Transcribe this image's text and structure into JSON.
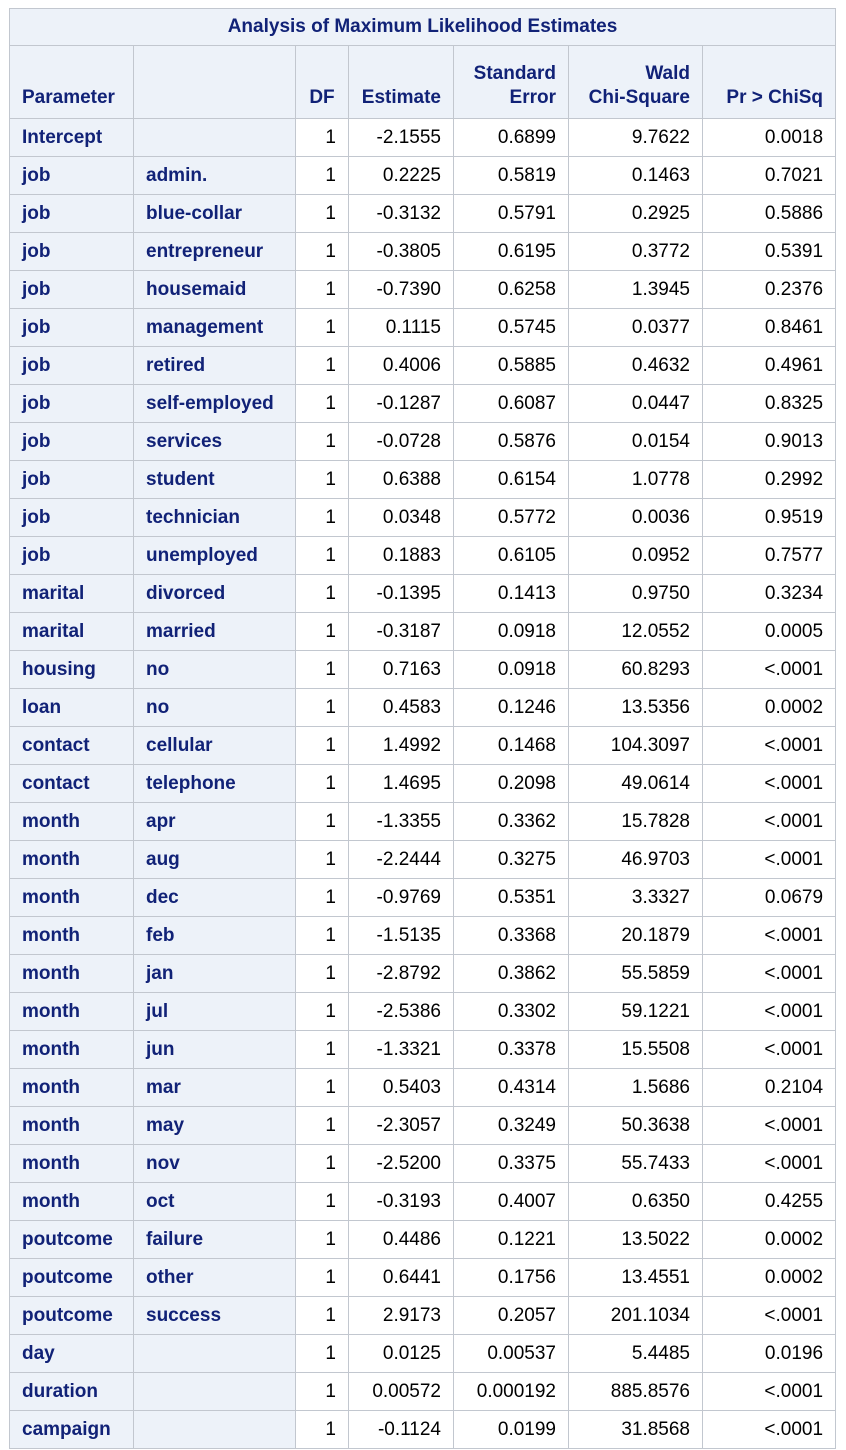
{
  "table": {
    "title": "Analysis of Maximum Likelihood Estimates",
    "headers": {
      "parameter": "Parameter",
      "level": "",
      "df": "DF",
      "estimate": "Estimate",
      "std_error_l1": "Standard",
      "std_error_l2": "Error",
      "wald_l1": "Wald",
      "wald_l2": "Chi-Square",
      "pr": "Pr > ChiSq"
    },
    "rows": [
      {
        "param": "Intercept",
        "level": "",
        "df": "1",
        "est": "-2.1555",
        "se": "0.6899",
        "wald": "9.7622",
        "pr": "0.0018"
      },
      {
        "param": "job",
        "level": "admin.",
        "df": "1",
        "est": "0.2225",
        "se": "0.5819",
        "wald": "0.1463",
        "pr": "0.7021"
      },
      {
        "param": "job",
        "level": "blue-collar",
        "df": "1",
        "est": "-0.3132",
        "se": "0.5791",
        "wald": "0.2925",
        "pr": "0.5886"
      },
      {
        "param": "job",
        "level": "entrepreneur",
        "df": "1",
        "est": "-0.3805",
        "se": "0.6195",
        "wald": "0.3772",
        "pr": "0.5391"
      },
      {
        "param": "job",
        "level": "housemaid",
        "df": "1",
        "est": "-0.7390",
        "se": "0.6258",
        "wald": "1.3945",
        "pr": "0.2376"
      },
      {
        "param": "job",
        "level": "management",
        "df": "1",
        "est": "0.1115",
        "se": "0.5745",
        "wald": "0.0377",
        "pr": "0.8461"
      },
      {
        "param": "job",
        "level": "retired",
        "df": "1",
        "est": "0.4006",
        "se": "0.5885",
        "wald": "0.4632",
        "pr": "0.4961"
      },
      {
        "param": "job",
        "level": "self-employed",
        "df": "1",
        "est": "-0.1287",
        "se": "0.6087",
        "wald": "0.0447",
        "pr": "0.8325"
      },
      {
        "param": "job",
        "level": "services",
        "df": "1",
        "est": "-0.0728",
        "se": "0.5876",
        "wald": "0.0154",
        "pr": "0.9013"
      },
      {
        "param": "job",
        "level": "student",
        "df": "1",
        "est": "0.6388",
        "se": "0.6154",
        "wald": "1.0778",
        "pr": "0.2992"
      },
      {
        "param": "job",
        "level": "technician",
        "df": "1",
        "est": "0.0348",
        "se": "0.5772",
        "wald": "0.0036",
        "pr": "0.9519"
      },
      {
        "param": "job",
        "level": "unemployed",
        "df": "1",
        "est": "0.1883",
        "se": "0.6105",
        "wald": "0.0952",
        "pr": "0.7577"
      },
      {
        "param": "marital",
        "level": "divorced",
        "df": "1",
        "est": "-0.1395",
        "se": "0.1413",
        "wald": "0.9750",
        "pr": "0.3234"
      },
      {
        "param": "marital",
        "level": "married",
        "df": "1",
        "est": "-0.3187",
        "se": "0.0918",
        "wald": "12.0552",
        "pr": "0.0005"
      },
      {
        "param": "housing",
        "level": "no",
        "df": "1",
        "est": "0.7163",
        "se": "0.0918",
        "wald": "60.8293",
        "pr": "<.0001"
      },
      {
        "param": "loan",
        "level": "no",
        "df": "1",
        "est": "0.4583",
        "se": "0.1246",
        "wald": "13.5356",
        "pr": "0.0002"
      },
      {
        "param": "contact",
        "level": "cellular",
        "df": "1",
        "est": "1.4992",
        "se": "0.1468",
        "wald": "104.3097",
        "pr": "<.0001"
      },
      {
        "param": "contact",
        "level": "telephone",
        "df": "1",
        "est": "1.4695",
        "se": "0.2098",
        "wald": "49.0614",
        "pr": "<.0001"
      },
      {
        "param": "month",
        "level": "apr",
        "df": "1",
        "est": "-1.3355",
        "se": "0.3362",
        "wald": "15.7828",
        "pr": "<.0001"
      },
      {
        "param": "month",
        "level": "aug",
        "df": "1",
        "est": "-2.2444",
        "se": "0.3275",
        "wald": "46.9703",
        "pr": "<.0001"
      },
      {
        "param": "month",
        "level": "dec",
        "df": "1",
        "est": "-0.9769",
        "se": "0.5351",
        "wald": "3.3327",
        "pr": "0.0679"
      },
      {
        "param": "month",
        "level": "feb",
        "df": "1",
        "est": "-1.5135",
        "se": "0.3368",
        "wald": "20.1879",
        "pr": "<.0001"
      },
      {
        "param": "month",
        "level": "jan",
        "df": "1",
        "est": "-2.8792",
        "se": "0.3862",
        "wald": "55.5859",
        "pr": "<.0001"
      },
      {
        "param": "month",
        "level": "jul",
        "df": "1",
        "est": "-2.5386",
        "se": "0.3302",
        "wald": "59.1221",
        "pr": "<.0001"
      },
      {
        "param": "month",
        "level": "jun",
        "df": "1",
        "est": "-1.3321",
        "se": "0.3378",
        "wald": "15.5508",
        "pr": "<.0001"
      },
      {
        "param": "month",
        "level": "mar",
        "df": "1",
        "est": "0.5403",
        "se": "0.4314",
        "wald": "1.5686",
        "pr": "0.2104"
      },
      {
        "param": "month",
        "level": "may",
        "df": "1",
        "est": "-2.3057",
        "se": "0.3249",
        "wald": "50.3638",
        "pr": "<.0001"
      },
      {
        "param": "month",
        "level": "nov",
        "df": "1",
        "est": "-2.5200",
        "se": "0.3375",
        "wald": "55.7433",
        "pr": "<.0001"
      },
      {
        "param": "month",
        "level": "oct",
        "df": "1",
        "est": "-0.3193",
        "se": "0.4007",
        "wald": "0.6350",
        "pr": "0.4255"
      },
      {
        "param": "poutcome",
        "level": "failure",
        "df": "1",
        "est": "0.4486",
        "se": "0.1221",
        "wald": "13.5022",
        "pr": "0.0002"
      },
      {
        "param": "poutcome",
        "level": "other",
        "df": "1",
        "est": "0.6441",
        "se": "0.1756",
        "wald": "13.4551",
        "pr": "0.0002"
      },
      {
        "param": "poutcome",
        "level": "success",
        "df": "1",
        "est": "2.9173",
        "se": "0.2057",
        "wald": "201.1034",
        "pr": "<.0001"
      },
      {
        "param": "day",
        "level": "",
        "df": "1",
        "est": "0.0125",
        "se": "0.00537",
        "wald": "5.4485",
        "pr": "0.0196"
      },
      {
        "param": "duration",
        "level": "",
        "df": "1",
        "est": "0.00572",
        "se": "0.000192",
        "wald": "885.8576",
        "pr": "<.0001"
      },
      {
        "param": "campaign",
        "level": "",
        "df": "1",
        "est": "-0.1124",
        "se": "0.0199",
        "wald": "31.8568",
        "pr": "<.0001"
      }
    ]
  },
  "colors": {
    "header_bg": "#edf2f9",
    "header_text": "#112277",
    "border": "#c2c7cf",
    "cell_bg": "#ffffff",
    "cell_text": "#000000"
  }
}
